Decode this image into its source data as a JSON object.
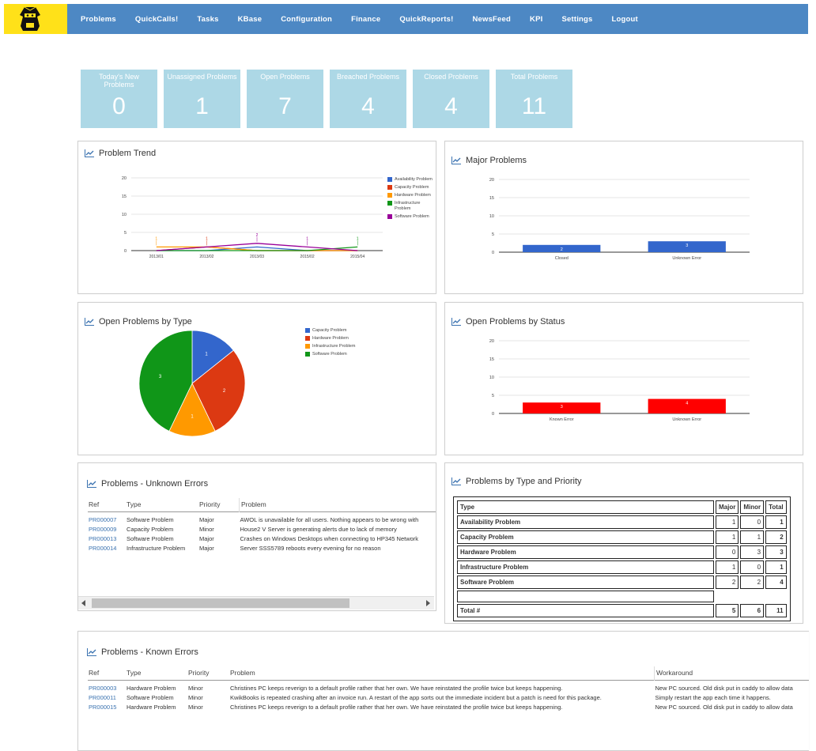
{
  "nav": {
    "logo_icon": "ninja-logo-icon",
    "items": [
      "Problems",
      "QuickCalls!",
      "Tasks",
      "KBase",
      "Configuration",
      "Finance",
      "QuickReports!",
      "NewsFeed",
      "KPI",
      "Settings",
      "Logout"
    ]
  },
  "stats": [
    {
      "label": "Today's New Problems",
      "value": "0"
    },
    {
      "label": "Unassigned Problems",
      "value": "1"
    },
    {
      "label": "Open Problems",
      "value": "7"
    },
    {
      "label": "Breached Problems",
      "value": "4"
    },
    {
      "label": "Closed Problems",
      "value": "4"
    },
    {
      "label": "Total Problems",
      "value": "11"
    }
  ],
  "panels": {
    "problem_trend": "Problem Trend",
    "major_problems": "Major Problems",
    "open_by_type": "Open Problems by Type",
    "open_by_status": "Open Problems by Status",
    "unknown_errors": "Problems - Unknown Errors",
    "by_type_priority": "Problems by Type and Priority",
    "known_errors": "Problems - Known Errors"
  },
  "colors": {
    "blue": "#3366cc",
    "red": "#dc3912",
    "orange": "#ff9900",
    "green": "#109618",
    "purple": "#990099",
    "status_red": "#ff0000"
  },
  "chart_data": [
    {
      "type": "line",
      "title": "Problem Trend",
      "x": [
        "2013/01",
        "2013/02",
        "2013/03",
        "2015/02",
        "2015/04"
      ],
      "ylim": [
        0,
        20
      ],
      "yticks": [
        0,
        5,
        10,
        15,
        20
      ],
      "legend_position": "right",
      "series": [
        {
          "name": "Availability Problem",
          "color": "#3366cc",
          "values": [
            0,
            0,
            1,
            0,
            0
          ]
        },
        {
          "name": "Capacity Problem",
          "color": "#dc3912",
          "values": [
            0,
            1,
            0,
            0,
            0
          ]
        },
        {
          "name": "Hardware Problem",
          "color": "#ff9900",
          "values": [
            1,
            1,
            0,
            0,
            0
          ]
        },
        {
          "name": "Infrastructure Problem",
          "color": "#109618",
          "values": [
            0,
            0,
            0,
            0,
            1
          ]
        },
        {
          "name": "Software Problem",
          "color": "#990099",
          "values": [
            0,
            1,
            2,
            1,
            0
          ]
        }
      ],
      "data_labels": [
        {
          "x": "2013/01",
          "text": "1"
        },
        {
          "x": "2013/02",
          "text": "1"
        },
        {
          "x": "2013/03",
          "text": "2"
        },
        {
          "x": "2015/02",
          "text": "1"
        },
        {
          "x": "2015/04",
          "text": "1"
        }
      ]
    },
    {
      "type": "bar",
      "title": "Major Problems",
      "categories": [
        "Closed",
        "Unknown Error"
      ],
      "values": [
        2,
        3
      ],
      "ylim": [
        0,
        20
      ],
      "yticks": [
        0,
        5,
        10,
        15,
        20
      ],
      "color": "#3366cc"
    },
    {
      "type": "pie",
      "title": "Open Problems by Type",
      "legend_position": "right",
      "slices": [
        {
          "label": "Capacity Problem",
          "value": 1,
          "color": "#3366cc"
        },
        {
          "label": "Hardware Problem",
          "value": 2,
          "color": "#dc3912"
        },
        {
          "label": "Infrastructure Problem",
          "value": 1,
          "color": "#ff9900"
        },
        {
          "label": "Software Problem",
          "value": 3,
          "color": "#109618"
        }
      ]
    },
    {
      "type": "bar",
      "title": "Open Problems by Status",
      "categories": [
        "Known Error",
        "Unknown Error"
      ],
      "values": [
        3,
        4
      ],
      "ylim": [
        0,
        20
      ],
      "yticks": [
        0,
        5,
        10,
        15,
        20
      ],
      "color": "#ff0000"
    }
  ],
  "unknown_errors": {
    "headers": [
      "Ref",
      "Type",
      "Priority",
      "Problem"
    ],
    "rows": [
      {
        "ref": "PR000007",
        "type": "Software Problem",
        "priority": "Major",
        "problem": "AWOL is unavailable for all users. Nothing appears to be wrong with"
      },
      {
        "ref": "PR000009",
        "type": "Capacity Problem",
        "priority": "Minor",
        "problem": "House2 V Server is generating alerts due to lack of memory"
      },
      {
        "ref": "PR000013",
        "type": "Software Problem",
        "priority": "Major",
        "problem": "Crashes on Windows Desktops when connecting to HP345 Network"
      },
      {
        "ref": "PR000014",
        "type": "Infrastructure Problem",
        "priority": "Major",
        "problem": "Server SSS5789 reboots every evening for no reason"
      }
    ]
  },
  "type_priority": {
    "headers": [
      "Type",
      "Major",
      "Minor",
      "Total"
    ],
    "rows": [
      {
        "type": "Availability Problem",
        "major": "1",
        "minor": "0",
        "total": "1"
      },
      {
        "type": "Capacity Problem",
        "major": "1",
        "minor": "1",
        "total": "2"
      },
      {
        "type": "Hardware Problem",
        "major": "0",
        "minor": "3",
        "total": "3"
      },
      {
        "type": "Infrastructure Problem",
        "major": "1",
        "minor": "0",
        "total": "1"
      },
      {
        "type": "Software Problem",
        "major": "2",
        "minor": "2",
        "total": "4"
      }
    ],
    "total": {
      "type": "Total #",
      "major": "5",
      "minor": "6",
      "total": "11"
    }
  },
  "known_errors": {
    "headers": [
      "Ref",
      "Type",
      "Priority",
      "Problem",
      "Workaround"
    ],
    "rows": [
      {
        "ref": "PR000003",
        "type": "Hardware Problem",
        "priority": "Minor",
        "problem": "Christines PC keeps reverign to a default profile rather that her own. We have reinstated the profile twice but keeps happening.",
        "workaround": "New PC sourced. Old disk put in caddy to allow data"
      },
      {
        "ref": "PR000011",
        "type": "Software Problem",
        "priority": "Minor",
        "problem": "KwikBooks is repeated crashing after an invoice run. A restart of the app sorts out the immediate incident but a patch is need for this package.",
        "workaround": "Simply restart the app each time it happens."
      },
      {
        "ref": "PR000015",
        "type": "Hardware Problem",
        "priority": "Minor",
        "problem": "Christines PC keeps reverign to a default profile rather that her own. We have reinstated the profile twice but keeps happening.",
        "workaround": "New PC sourced. Old disk put in caddy to allow data"
      }
    ]
  }
}
